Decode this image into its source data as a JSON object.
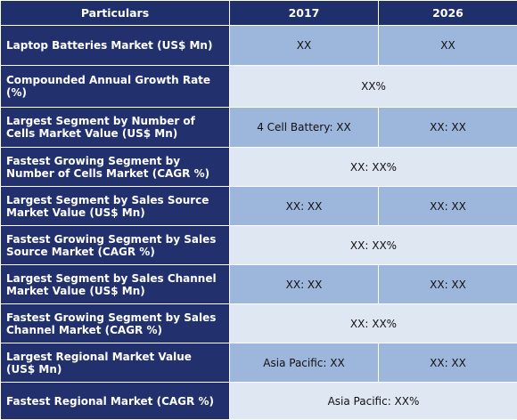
{
  "header": {
    "particulars": "Particulars",
    "year1": "2017",
    "year2": "2026"
  },
  "rows": [
    {
      "label": "Laptop Batteries Market (US$ Mn)",
      "v2017": "XX",
      "v2026": "XX"
    },
    {
      "label": "Compounded Annual Growth Rate (%)",
      "merged": "XX%"
    },
    {
      "label": "Largest Segment by Number of Cells Market Value (US$ Mn)",
      "v2017": "4 Cell Battery: XX",
      "v2026": "XX: XX"
    },
    {
      "label": "Fastest Growing Segment by Number of Cells Market (CAGR %)",
      "merged": "XX: XX%"
    },
    {
      "label": "Largest Segment by Sales Source Market Value (US$ Mn)",
      "v2017": "XX: XX",
      "v2026": "XX: XX"
    },
    {
      "label": "Fastest Growing Segment by Sales Source Market (CAGR %)",
      "merged": "XX: XX%"
    },
    {
      "label": "Largest Segment by Sales Channel Market Value (US$ Mn)",
      "v2017": "XX: XX",
      "v2026": "XX: XX"
    },
    {
      "label": "Fastest Growing Segment by Sales Channel Market (CAGR %)",
      "merged": "XX: XX%"
    },
    {
      "label": "Largest Regional Market Value (US$ Mn)",
      "v2017": "Asia Pacific: XX",
      "v2026": "XX: XX"
    },
    {
      "label": "Fastest Regional Market (CAGR %)",
      "merged": "Asia Pacific: XX%"
    }
  ]
}
